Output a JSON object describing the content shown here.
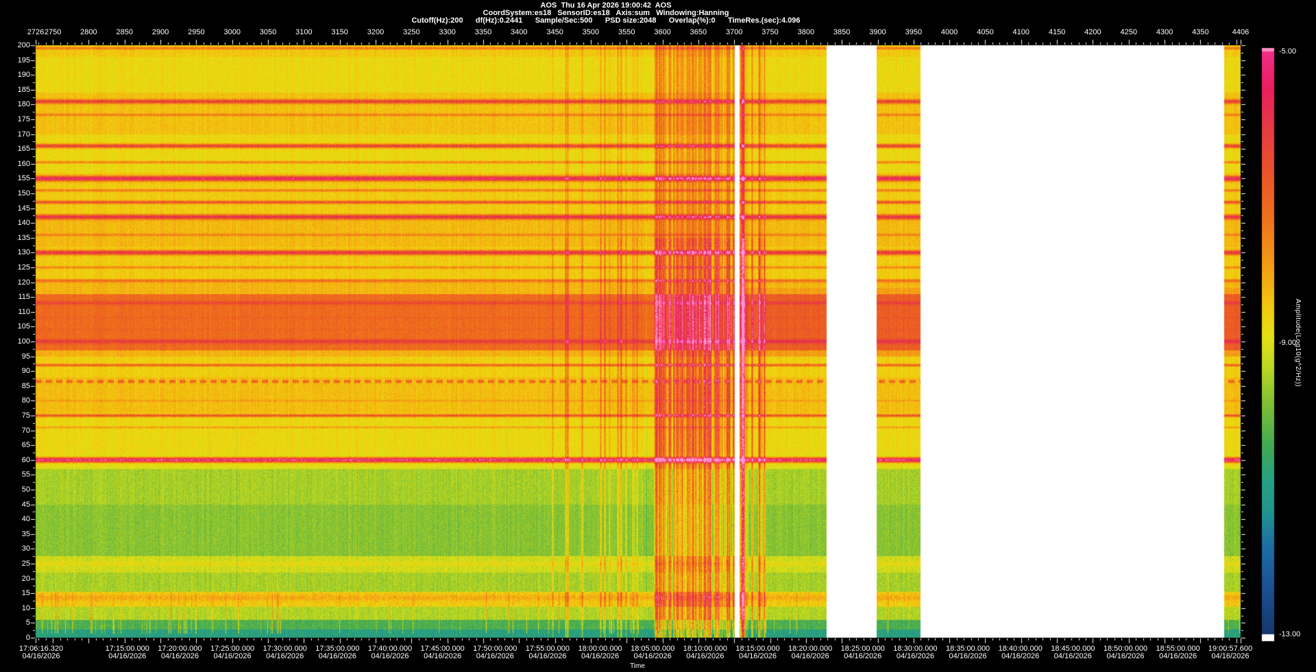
{
  "header": {
    "line1": "AOS  Thu 16 Apr 2026 19:00:42  AOS",
    "line2": "CoordSystem:es18   SensorID:es18   Axis:sum   Windowing:Hanning",
    "line3": "Cutoff(Hz):200      df(Hz):0.2441      Sample/Sec:500      PSD size:2048      Overlap(%):0      TimeRes.(sec):4.096"
  },
  "chart_data": {
    "type": "heatmap",
    "subtype": "spectrogram",
    "record_axis": {
      "start": 2726,
      "end": 4406,
      "major_step": 50,
      "minor_step": 10,
      "labels": [
        2726,
        2750,
        2800,
        2850,
        2900,
        2950,
        3000,
        3050,
        3100,
        3150,
        3200,
        3250,
        3300,
        3350,
        3400,
        3450,
        3500,
        3550,
        3600,
        3650,
        3700,
        3750,
        3800,
        3850,
        3900,
        3950,
        4000,
        4050,
        4100,
        4150,
        4200,
        4250,
        4300,
        4350,
        4406
      ]
    },
    "frequency_axis": {
      "min": 0,
      "max": 200,
      "major_step": 5,
      "minor_step": 2.5,
      "labels": [
        200,
        195,
        190,
        185,
        180,
        175,
        170,
        165,
        160,
        155,
        150,
        145,
        140,
        135,
        130,
        125,
        120,
        115,
        110,
        105,
        100,
        95,
        90,
        85,
        80,
        75,
        70,
        65,
        60,
        55,
        50,
        45,
        40,
        35,
        30,
        25,
        20,
        15,
        10,
        5,
        0
      ]
    },
    "time_axis": {
      "label": "Time",
      "start": "17:06:16.320",
      "end": "19:00:57.600",
      "date": "04/16/2026",
      "labels": [
        "17:06:16.320",
        "17:15:00.000",
        "17:20:00.000",
        "17:25:00.000",
        "17:30:00.000",
        "17:35:00.000",
        "17:40:00.000",
        "17:45:00.000",
        "17:50:00.000",
        "17:55:00.000",
        "18:00:00.000",
        "18:05:00.000",
        "18:10:00.000",
        "18:15:00.000",
        "18:20:00.000",
        "18:25:00.000",
        "18:30:00.000",
        "18:35:00.000",
        "18:40:00.000",
        "18:45:00.000",
        "18:50:00.000",
        "18:55:00.000",
        "19:00:57.600"
      ]
    },
    "colorbar": {
      "min": -13,
      "max": -5,
      "label": "Amplitude(Log10(g^2/Hz))",
      "ticks": [
        {
          "label": "-5.00",
          "value": -5
        },
        {
          "label": "-9.00",
          "value": -9
        },
        {
          "label": "-13.00",
          "value": -13
        }
      ],
      "above_range_color": "#fb8dc0",
      "below_cap_color": "#ffffff"
    },
    "gap_color": "#ffffff",
    "colormap": [
      [
        -13.0,
        "#16386e"
      ],
      [
        -12.4,
        "#1b4f91"
      ],
      [
        -11.8,
        "#1d6da6"
      ],
      [
        -11.3,
        "#21968f"
      ],
      [
        -10.9,
        "#27a086"
      ],
      [
        -10.4,
        "#43ab52"
      ],
      [
        -9.8,
        "#84c133"
      ],
      [
        -9.3,
        "#c0d922"
      ],
      [
        -8.9,
        "#e6e112"
      ],
      [
        -8.5,
        "#f3c90f"
      ],
      [
        -7.9,
        "#f49a15"
      ],
      [
        -7.2,
        "#f06c1d"
      ],
      [
        -6.6,
        "#ea512b"
      ],
      [
        -6.0,
        "#e63946"
      ],
      [
        -5.5,
        "#ec1e5f"
      ],
      [
        -5.0,
        "#f22e88"
      ],
      [
        -4.6,
        "#ff93c9"
      ]
    ],
    "freq_bands": [
      [
        0,
        2.8,
        -10.9,
        0.7
      ],
      [
        2.8,
        6,
        -10.3,
        0.7
      ],
      [
        6,
        10.5,
        -9.4,
        0.6
      ],
      [
        10.5,
        15.5,
        -8.55,
        0.9
      ],
      [
        15.5,
        22,
        -9.5,
        0.6
      ],
      [
        22,
        27.5,
        -9.1,
        0.8
      ],
      [
        27.5,
        45,
        -9.75,
        0.55
      ],
      [
        45,
        57,
        -9.5,
        0.55
      ],
      [
        57,
        62,
        -8.95,
        0.5
      ],
      [
        62,
        76,
        -8.75,
        0.5
      ],
      [
        76,
        88,
        -8.35,
        0.5
      ],
      [
        88,
        95,
        -8.6,
        0.5
      ],
      [
        95,
        97,
        -8.2,
        0.5
      ],
      [
        97,
        116,
        -7.15,
        0.6
      ],
      [
        116,
        121,
        -8.25,
        0.5
      ],
      [
        121,
        132,
        -8.55,
        0.5
      ],
      [
        132,
        143,
        -8.3,
        0.5
      ],
      [
        143,
        157,
        -8.55,
        0.5
      ],
      [
        157,
        170,
        -8.75,
        0.5
      ],
      [
        170,
        184,
        -8.4,
        0.5
      ],
      [
        184,
        196,
        -8.75,
        0.5
      ],
      [
        196,
        200.1,
        -8.5,
        0.5
      ]
    ],
    "spectral_lines": [
      {
        "f": 199,
        "v": -7.3,
        "w": 0.5
      },
      {
        "f": 181,
        "v": -6.2,
        "w": 0.8
      },
      {
        "f": 176.5,
        "v": -7.4,
        "w": 0.5
      },
      {
        "f": 166,
        "v": -6.3,
        "w": 0.8
      },
      {
        "f": 160.5,
        "v": -7.5,
        "w": 0.5
      },
      {
        "f": 155,
        "v": -5.5,
        "w": 1.0
      },
      {
        "f": 151,
        "v": -7.4,
        "w": 0.5
      },
      {
        "f": 147,
        "v": -6.6,
        "w": 0.6
      },
      {
        "f": 142,
        "v": -5.9,
        "w": 0.9
      },
      {
        "f": 136,
        "v": -7.5,
        "w": 0.5
      },
      {
        "f": 130,
        "v": -6.0,
        "w": 0.9
      },
      {
        "f": 125,
        "v": -7.6,
        "w": 0.5
      },
      {
        "f": 120.5,
        "v": -7.2,
        "w": 0.6
      },
      {
        "f": 113,
        "v": -6.4,
        "w": 0.7
      },
      {
        "f": 108,
        "v": -7.0,
        "w": 0.5
      },
      {
        "f": 104,
        "v": -7.0,
        "w": 0.4
      },
      {
        "f": 100,
        "v": -6.1,
        "w": 0.8
      },
      {
        "f": 92,
        "v": -6.9,
        "w": 0.5
      },
      {
        "f": 86.5,
        "v": -6.9,
        "w": 0.6,
        "dashed": true
      },
      {
        "f": 80,
        "v": -7.9,
        "w": 0.4
      },
      {
        "f": 75,
        "v": -6.7,
        "w": 0.6
      },
      {
        "f": 71,
        "v": -7.9,
        "w": 0.4
      },
      {
        "f": 60,
        "v": -5.2,
        "w": 1.0
      },
      {
        "f": 25,
        "v": -8.8,
        "w": 0.8
      },
      {
        "f": 13.5,
        "v": -8.1,
        "w": 1.2
      }
    ],
    "data_gaps_records": [
      [
        3701,
        3707
      ],
      [
        3829,
        3899
      ],
      [
        3960,
        4383
      ]
    ],
    "events": {
      "clusters": [
        {
          "start": 3430,
          "end": 3590,
          "density": 0.1,
          "min": 0.5,
          "max": 1.6
        },
        {
          "start": 3590,
          "end": 3700,
          "density": 0.55,
          "min": 0.8,
          "max": 3.0
        },
        {
          "start": 3708,
          "end": 3745,
          "density": 0.3,
          "min": 0.8,
          "max": 2.6
        }
      ],
      "impulse": {
        "record": 3712,
        "boost": 4.2,
        "width_records": 4
      },
      "orange_band_boost_after_record": {
        "record": 3710,
        "f_low": 95,
        "f_high": 118,
        "boost": 0.28
      }
    },
    "low_freq_streaks": {
      "density": 0.05,
      "left_extra_before_record": 2960,
      "left_density": 0.16,
      "min": 0.9,
      "max": 2.3,
      "fmax_min": 8,
      "fmax_max": 28
    },
    "dark_vertical_lines": {
      "density": 0.01,
      "min": 0.3,
      "max": 0.55
    }
  }
}
